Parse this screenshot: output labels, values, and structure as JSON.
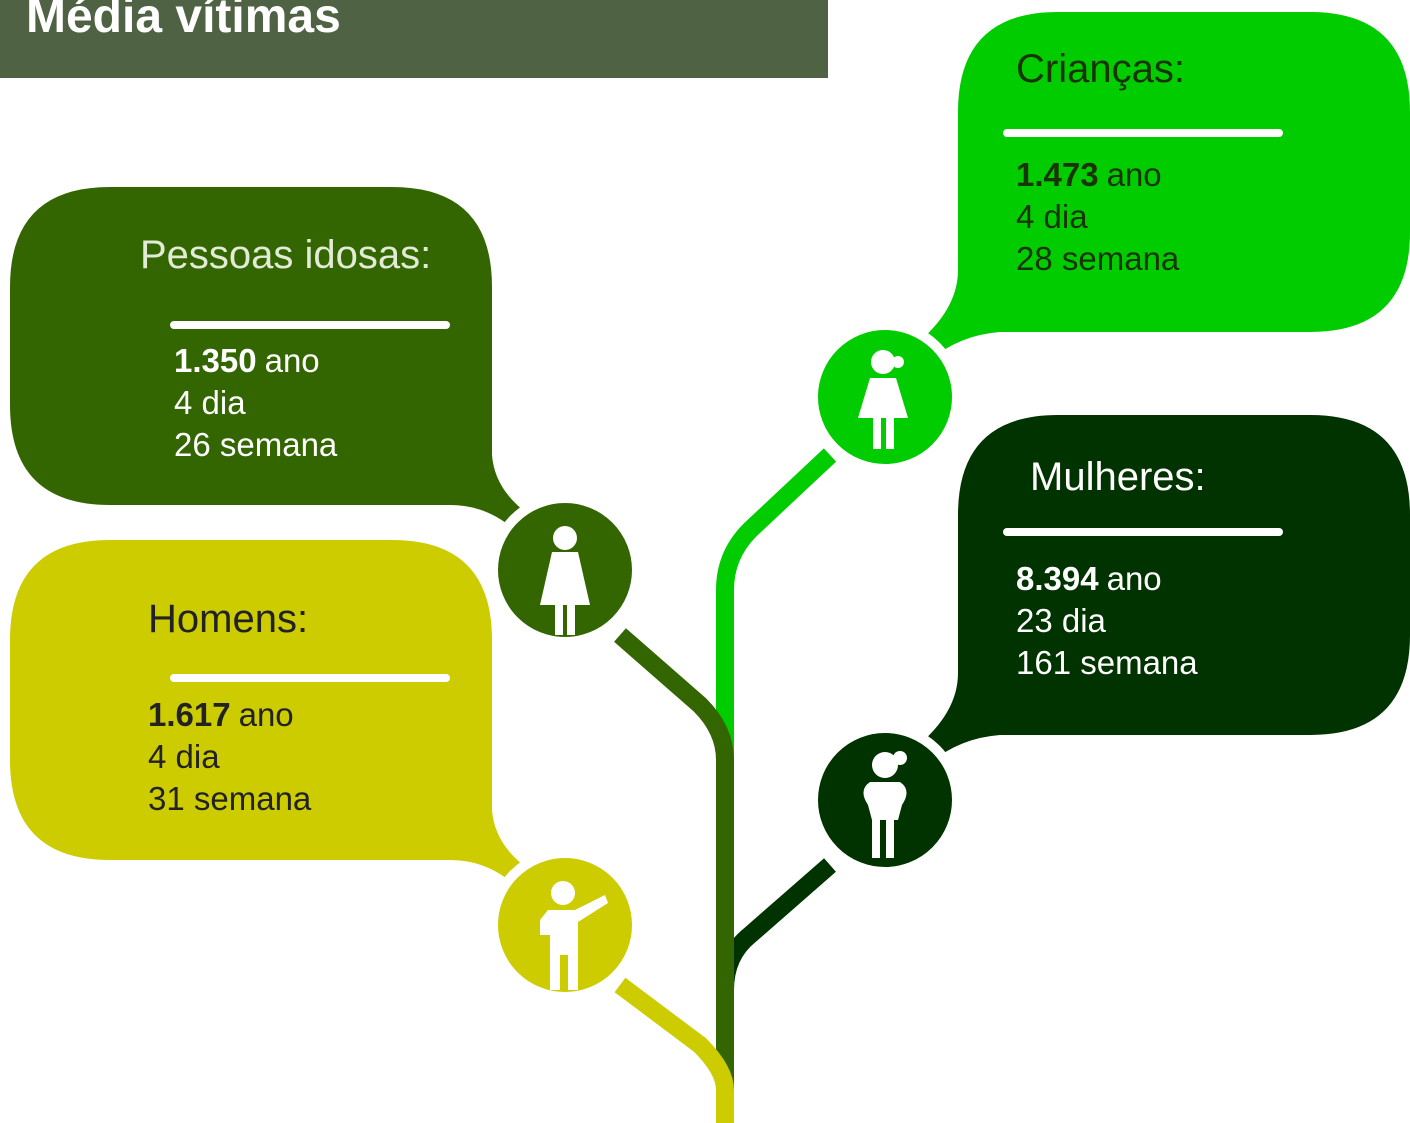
{
  "header": {
    "title": "Média vítimas"
  },
  "groups": [
    {
      "label": "Pessoas idosas:",
      "value": "1.350",
      "unit": "ano",
      "lines": [
        "4 dia",
        "26 semana"
      ]
    },
    {
      "label": "Homens:",
      "value": "1.617",
      "unit": "ano",
      "lines": [
        "4 dia",
        "31 semana"
      ]
    },
    {
      "label": "Crianças:",
      "value": "1.473",
      "unit": "ano",
      "lines": [
        "4 dia",
        "28 semana"
      ]
    },
    {
      "label": "Mulheres:",
      "value": "8.394",
      "unit": "ano",
      "lines": [
        "23 dia",
        "161 semana"
      ]
    }
  ]
}
